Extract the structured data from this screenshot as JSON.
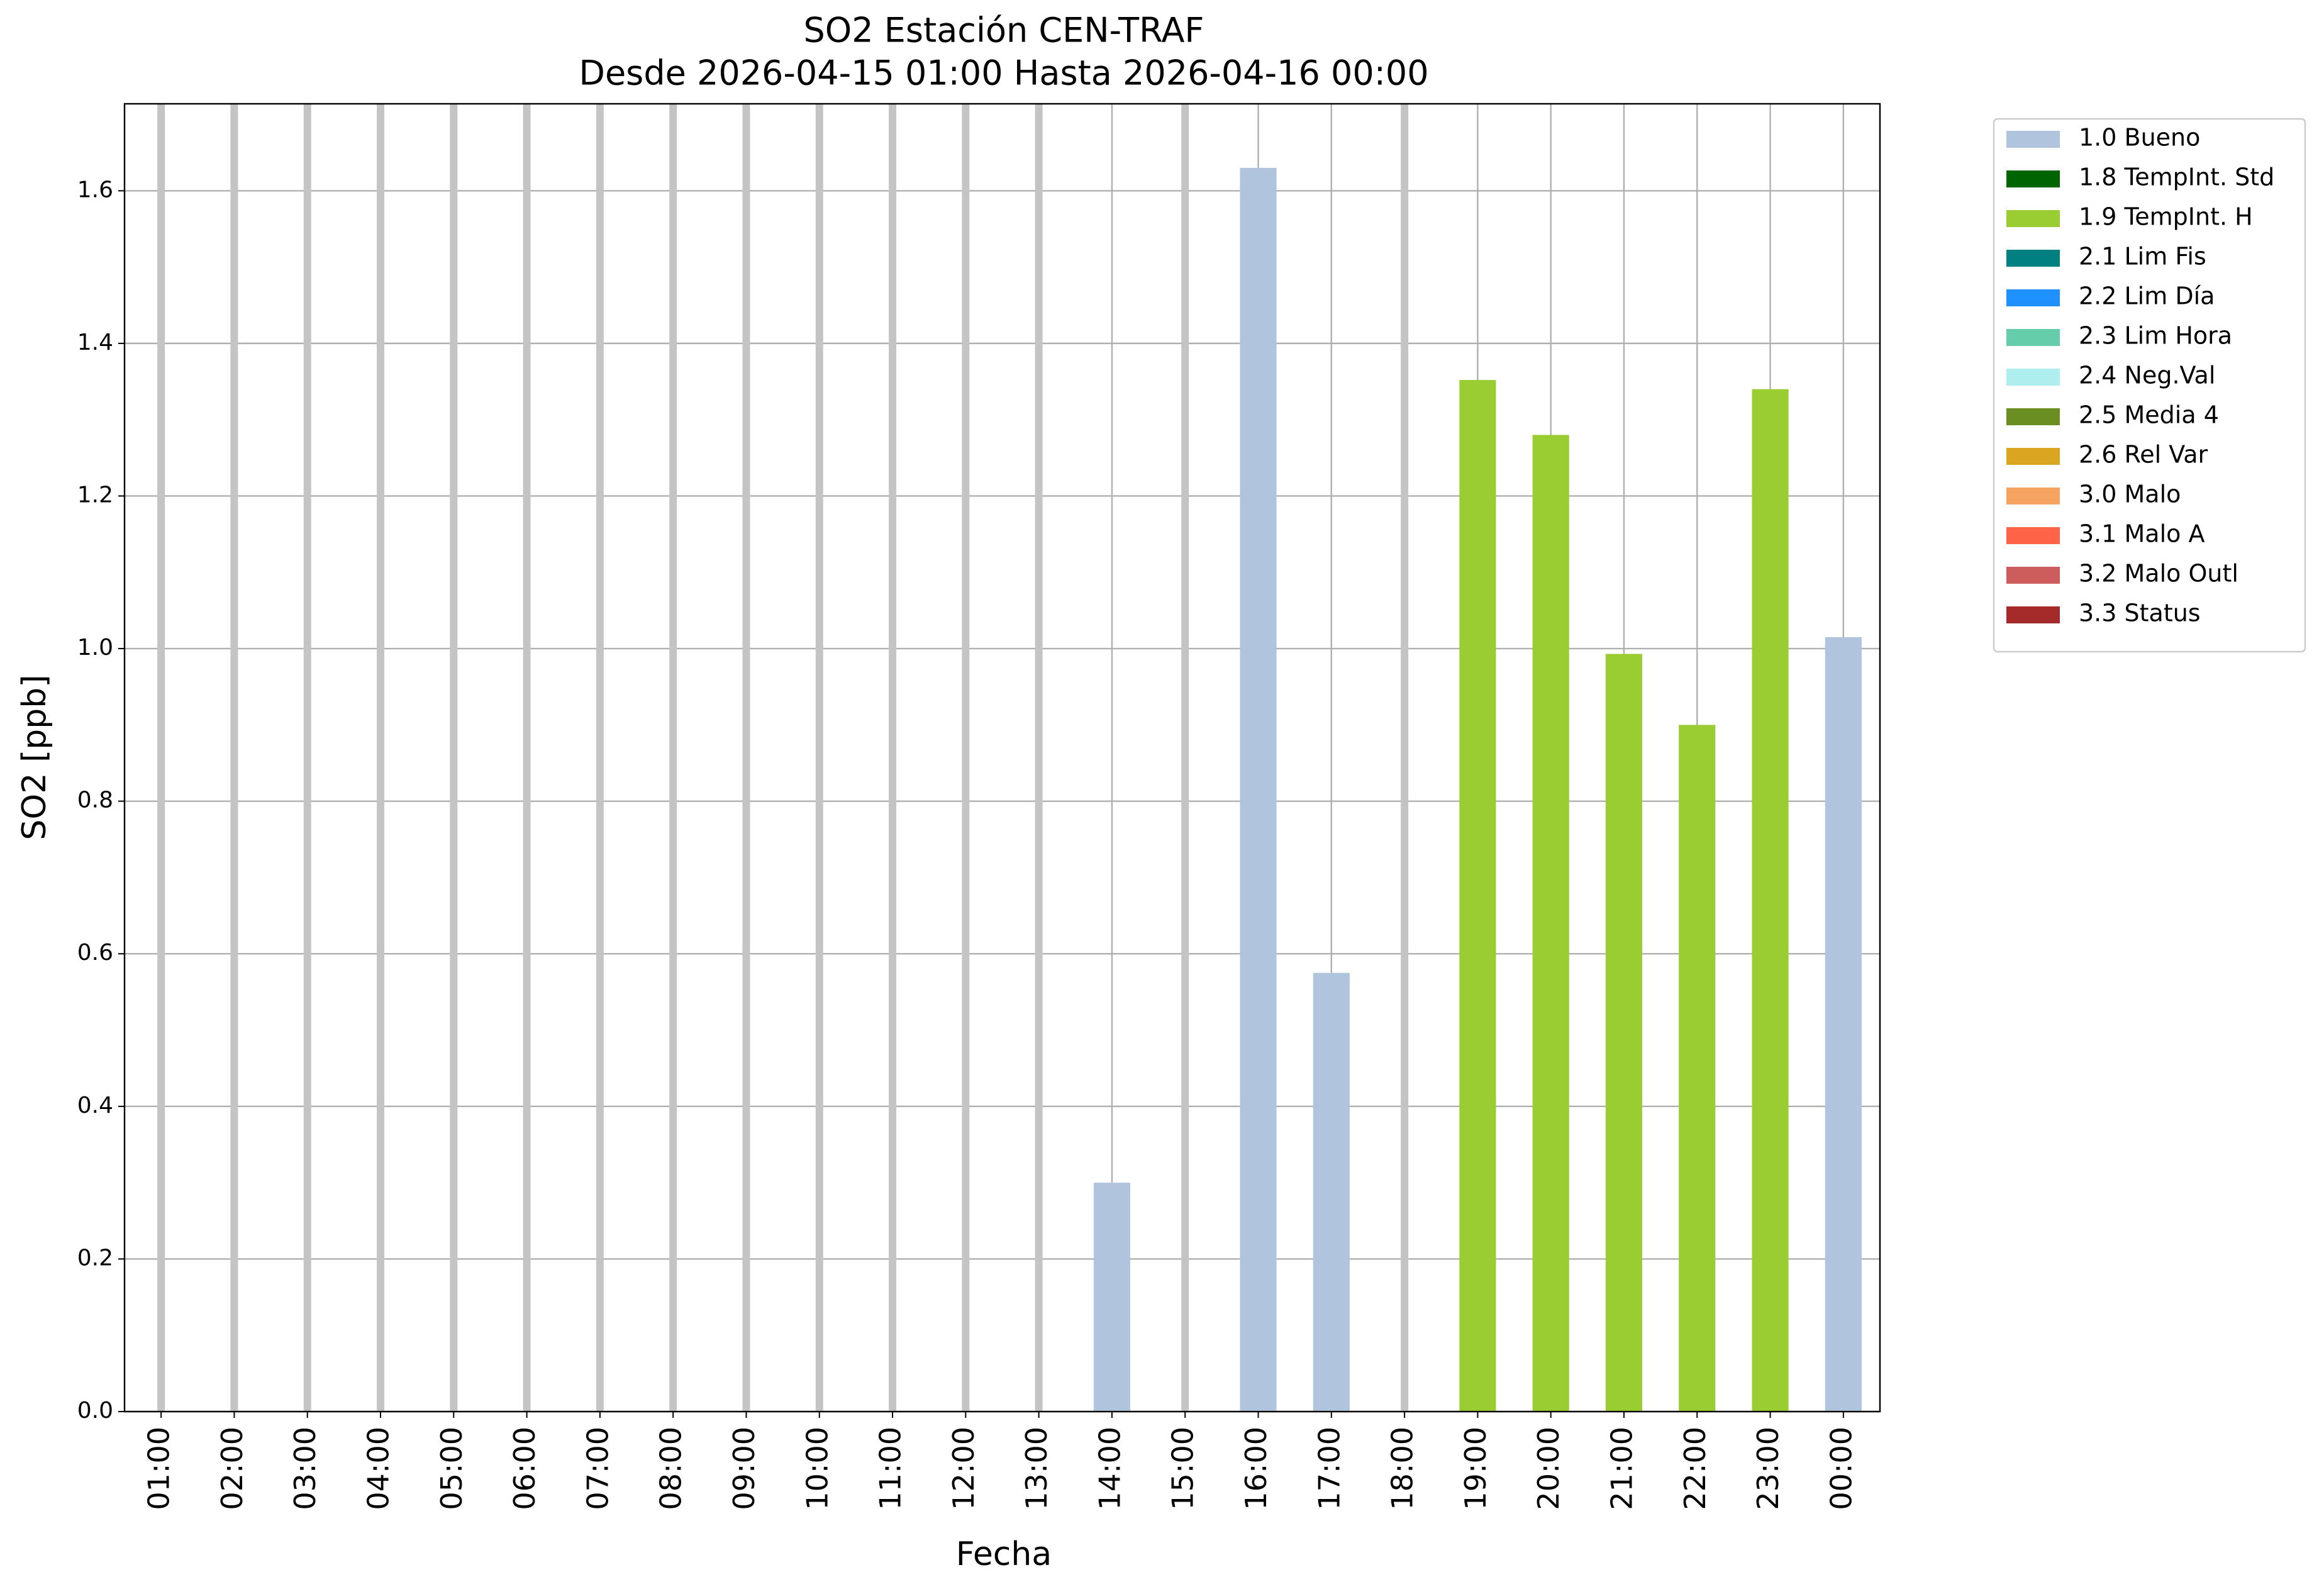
{
  "chart_data": {
    "type": "bar",
    "stacked": true,
    "title": "SO2 Estación CEN-TRAF",
    "subtitle": "Desde 2026-04-15 01:00 Hasta 2026-04-16 00:00",
    "x_label": "Fecha",
    "y_label": "SO2 [ppb]",
    "categories": [
      "01:00",
      "02:00",
      "03:00",
      "04:00",
      "05:00",
      "06:00",
      "07:00",
      "08:00",
      "09:00",
      "10:00",
      "11:00",
      "12:00",
      "13:00",
      "14:00",
      "15:00",
      "16:00",
      "17:00",
      "18:00",
      "19:00",
      "20:00",
      "21:00",
      "22:00",
      "23:00",
      "00:00"
    ],
    "ylim": [
      0,
      1.714
    ],
    "yticks": [
      {
        "value": 0,
        "label": "0.0"
      },
      0.2,
      0.4,
      0.6,
      0.8,
      {
        "value": 1,
        "label": "1.0"
      },
      1.2,
      1.4,
      1.6
    ],
    "grid": true,
    "legend": "outside-upper-right",
    "series": [
      {
        "name": "1.0 Bueno",
        "color": "#b0c4de",
        "values": [
          null,
          null,
          null,
          null,
          null,
          null,
          null,
          null,
          null,
          null,
          null,
          null,
          null,
          0.3,
          null,
          1.63,
          0.575,
          null,
          null,
          null,
          null,
          null,
          null,
          1.015
        ]
      },
      {
        "name": "1.8 TempInt. Std",
        "color": "#006400",
        "values": [
          null,
          null,
          null,
          null,
          null,
          null,
          null,
          null,
          null,
          null,
          null,
          null,
          null,
          null,
          null,
          null,
          null,
          null,
          null,
          null,
          null,
          null,
          null,
          null
        ]
      },
      {
        "name": "1.9 TempInt. H",
        "color": "#9acd32",
        "values": [
          null,
          null,
          null,
          null,
          null,
          null,
          null,
          null,
          null,
          null,
          null,
          null,
          null,
          null,
          null,
          null,
          null,
          null,
          1.352,
          1.28,
          0.993,
          0.9,
          1.34,
          null
        ]
      },
      {
        "name": "2.1 Lim Fis",
        "color": "#008080",
        "values": [
          null,
          null,
          null,
          null,
          null,
          null,
          null,
          null,
          null,
          null,
          null,
          null,
          null,
          null,
          null,
          null,
          null,
          null,
          null,
          null,
          null,
          null,
          null,
          null
        ]
      },
      {
        "name": "2.2 Lim Día",
        "color": "#1e90ff",
        "values": [
          null,
          null,
          null,
          null,
          null,
          null,
          null,
          null,
          null,
          null,
          null,
          null,
          null,
          null,
          null,
          null,
          null,
          null,
          null,
          null,
          null,
          null,
          null,
          null
        ]
      },
      {
        "name": "2.3 Lim Hora",
        "color": "#66cdaa",
        "values": [
          null,
          null,
          null,
          null,
          null,
          null,
          null,
          null,
          null,
          null,
          null,
          null,
          null,
          null,
          null,
          null,
          null,
          null,
          null,
          null,
          null,
          null,
          null,
          null
        ]
      },
      {
        "name": "2.4 Neg.Val",
        "color": "#afeeee",
        "values": [
          null,
          null,
          null,
          null,
          null,
          null,
          null,
          null,
          null,
          null,
          null,
          null,
          null,
          null,
          null,
          null,
          null,
          null,
          null,
          null,
          null,
          null,
          null,
          null
        ]
      },
      {
        "name": "2.5 Media 4",
        "color": "#6b8e23",
        "values": [
          null,
          null,
          null,
          null,
          null,
          null,
          null,
          null,
          null,
          null,
          null,
          null,
          null,
          null,
          null,
          null,
          null,
          null,
          null,
          null,
          null,
          null,
          null,
          null
        ]
      },
      {
        "name": "2.6 Rel Var",
        "color": "#daa520",
        "values": [
          null,
          null,
          null,
          null,
          null,
          null,
          null,
          null,
          null,
          null,
          null,
          null,
          null,
          null,
          null,
          null,
          null,
          null,
          null,
          null,
          null,
          null,
          null,
          null
        ]
      },
      {
        "name": "3.0 Malo",
        "color": "#f4a460",
        "values": [
          null,
          null,
          null,
          null,
          null,
          null,
          null,
          null,
          null,
          null,
          null,
          null,
          null,
          null,
          null,
          null,
          null,
          null,
          null,
          null,
          null,
          null,
          null,
          null
        ]
      },
      {
        "name": "3.1 Malo A",
        "color": "#ff6347",
        "values": [
          null,
          null,
          null,
          null,
          null,
          null,
          null,
          null,
          null,
          null,
          null,
          null,
          null,
          null,
          null,
          null,
          null,
          null,
          null,
          null,
          null,
          null,
          null,
          null
        ]
      },
      {
        "name": "3.2 Malo Outl",
        "color": "#cd5c5c",
        "values": [
          null,
          null,
          null,
          null,
          null,
          null,
          null,
          null,
          null,
          null,
          null,
          null,
          null,
          null,
          null,
          null,
          null,
          null,
          null,
          null,
          null,
          null,
          null,
          null
        ]
      },
      {
        "name": "3.3 Status",
        "color": "#a52a2a",
        "values": [
          null,
          null,
          null,
          null,
          null,
          null,
          null,
          null,
          null,
          null,
          null,
          null,
          null,
          null,
          null,
          null,
          null,
          null,
          null,
          null,
          null,
          null,
          null,
          null
        ]
      }
    ]
  }
}
